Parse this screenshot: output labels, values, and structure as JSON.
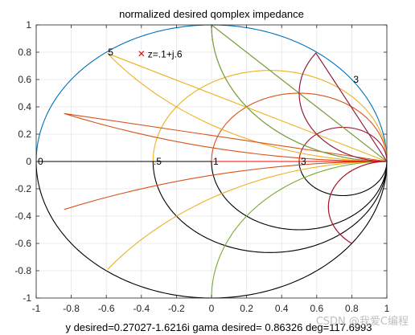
{
  "chart_data": {
    "type": "line",
    "title": "normalized desired qomplex impedance",
    "xlabel": "y desired=0.27027-1.6216i   gama desired= 0.86326 deg=117.6993",
    "xlim": [
      -1,
      1
    ],
    "ylim": [
      -1,
      1
    ],
    "xticks": [
      "-1",
      "-0.8",
      "-0.6",
      "-0.4",
      "-0.2",
      "0",
      "0.2",
      "0.4",
      "0.6",
      "0.8",
      "1"
    ],
    "yticks": [
      "1",
      "0.8",
      "0.6",
      "0.4",
      "0.2",
      "0",
      "-0.2",
      "-0.4",
      "-0.6",
      "-0.8",
      "-1"
    ],
    "grid": true,
    "series": [
      {
        "kind": "resistance-circle",
        "r": 0,
        "color": "#0072BD",
        "half": "upper"
      },
      {
        "kind": "resistance-circle",
        "r": 0,
        "color": "#000000",
        "half": "lower"
      },
      {
        "kind": "resistance-circle",
        "r": 1,
        "color": "#D95319",
        "half": "upper"
      },
      {
        "kind": "resistance-circle",
        "r": 1,
        "color": "#000000",
        "half": "lower"
      },
      {
        "kind": "resistance-circle",
        "r": 0.5,
        "color": "#EDB120",
        "half": "upper"
      },
      {
        "kind": "resistance-circle",
        "r": 0.5,
        "color": "#000000",
        "half": "lower"
      },
      {
        "kind": "resistance-circle",
        "r": 3,
        "color": "#A2142F",
        "half": "upper"
      },
      {
        "kind": "resistance-circle",
        "r": 3,
        "color": "#000000",
        "half": "lower"
      },
      {
        "kind": "reactance-arc",
        "x": 1,
        "color": "#7E2F8E",
        "sign": 1,
        "clip": true
      },
      {
        "kind": "reactance-arc",
        "x": 0.5,
        "color": "#EDB120",
        "sign": 1,
        "clip": true
      },
      {
        "kind": "reactance-arc",
        "x": 0.2,
        "color": "#D95319",
        "sign": 1,
        "clip": true
      },
      {
        "kind": "reactance-arc",
        "x": 2,
        "color": "#4DBEEE",
        "sign": 1,
        "clip": true
      },
      {
        "kind": "reactance-arc",
        "x": 1,
        "color": "#77AC30",
        "sign": 1,
        "clip": false
      },
      {
        "kind": "reactance-arc",
        "x": 1,
        "color": "#77AC30",
        "sign": -1,
        "clip": false
      },
      {
        "kind": "reactance-arc",
        "x": 0.5,
        "color": "#EDB120",
        "sign": -1,
        "clip": true
      },
      {
        "kind": "reactance-arc",
        "x": 2,
        "color": "#A2142F",
        "sign": 1,
        "clip": false
      },
      {
        "kind": "reactance-arc",
        "x": 3,
        "color": "#D95319",
        "sign": -1,
        "clip": true
      },
      {
        "kind": "reactance-arc",
        "x": 0.2,
        "color": "#D95319",
        "sign": -1,
        "clip": true
      },
      {
        "kind": "reactance-arc",
        "x": 3,
        "color": "#A2142F",
        "sign": -1,
        "clip": false
      },
      {
        "kind": "real-axis",
        "color": "#000000",
        "from": -1,
        "to": 1
      },
      {
        "kind": "real-axis",
        "color": "#FF0000",
        "from": 0,
        "to": 1
      }
    ],
    "marker": {
      "x": -0.4,
      "y": 0.79,
      "symbol": "x",
      "color": "#FF0000",
      "label": "z=.1+j.6"
    },
    "annotations": [
      {
        "text": "5",
        "x": -0.6,
        "y": 0.8
      },
      {
        "text": "3",
        "x": 0.8,
        "y": 0.6
      },
      {
        "text": "0",
        "x": -1,
        "y": 0
      },
      {
        "text": ".5",
        "x": -0.34,
        "y": 0
      },
      {
        "text": "1",
        "x": 0,
        "y": 0
      },
      {
        "text": "3",
        "x": 0.5,
        "y": 0
      }
    ],
    "watermark": "CSDN @我爱C编程"
  }
}
